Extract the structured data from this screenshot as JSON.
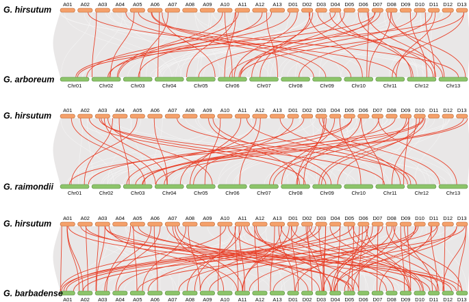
{
  "panels": [
    {
      "top_species": "G. hirsutum",
      "bottom_species": "G. arboreum",
      "top_chromosomes": [
        "A01",
        "A02",
        "A03",
        "A04",
        "A05",
        "A06",
        "A07",
        "A08",
        "A09",
        "A10",
        "A11",
        "A12",
        "A13",
        "D01",
        "D02",
        "D03",
        "D04",
        "D05",
        "D06",
        "D07",
        "D08",
        "D09",
        "D10",
        "D11",
        "D12",
        "D13"
      ],
      "bottom_chromosomes": [
        "Chr01",
        "Chr02",
        "Chr03",
        "Chr04",
        "Chr05",
        "Chr06",
        "Chr07",
        "Chr08",
        "Chr09",
        "Chr10",
        "Chr11",
        "Chr12",
        "Chr13"
      ]
    },
    {
      "top_species": "G. hirsutum",
      "bottom_species": "G. raimondii",
      "top_chromosomes": [
        "A01",
        "A02",
        "A03",
        "A04",
        "A05",
        "A06",
        "A07",
        "A08",
        "A09",
        "A10",
        "A11",
        "A12",
        "A13",
        "D01",
        "D02",
        "D03",
        "D04",
        "D05",
        "D06",
        "D07",
        "D08",
        "D09",
        "D10",
        "D11",
        "D12",
        "D13"
      ],
      "bottom_chromosomes": [
        "Chr01",
        "Chr02",
        "Chr03",
        "Chr04",
        "Chr05",
        "Chr06",
        "Chr07",
        "Chr08",
        "Chr09",
        "Chr10",
        "Chr11",
        "Chr12",
        "Chr13"
      ]
    },
    {
      "top_species": "G. hirsutum",
      "bottom_species": "G. barbadense",
      "top_chromosomes": [
        "A01",
        "A02",
        "A03",
        "A04",
        "A05",
        "A06",
        "A07",
        "A08",
        "A09",
        "A10",
        "A11",
        "A12",
        "A13",
        "D01",
        "D02",
        "D03",
        "D04",
        "D05",
        "D06",
        "D07",
        "D08",
        "D09",
        "D10",
        "D11",
        "D12",
        "D13"
      ],
      "bottom_chromosomes": [
        "A01",
        "A02",
        "A03",
        "A04",
        "A05",
        "A06",
        "A07",
        "A08",
        "A09",
        "A10",
        "A11",
        "A12",
        "A13",
        "D01",
        "D02",
        "D03",
        "D04",
        "D05",
        "D06",
        "D07",
        "D08",
        "D09",
        "D10",
        "D11",
        "D12",
        "D13"
      ]
    }
  ]
}
